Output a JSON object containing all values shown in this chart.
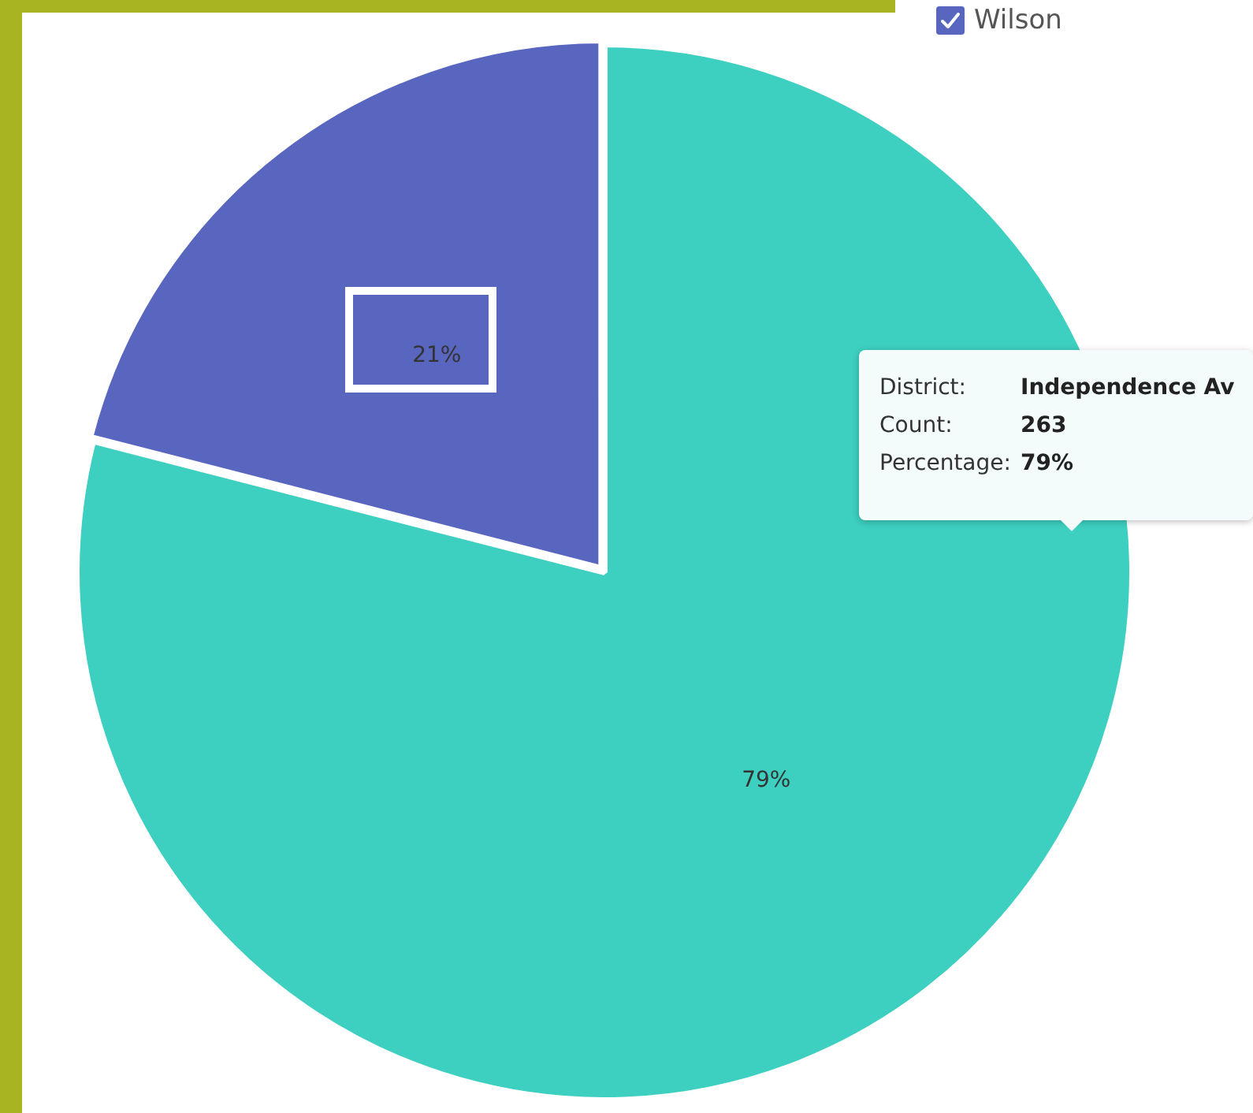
{
  "chart_data": {
    "type": "pie",
    "categories": [
      null,
      "Wilson"
    ],
    "values": [
      79,
      21
    ],
    "colors": [
      "#3dcfbf",
      "#5866c0"
    ],
    "value_labels": [
      "79%",
      "21%"
    ],
    "legend": "top right",
    "annotations": [
      "District:",
      "Independence Av",
      "Count:",
      "263",
      "Percentage:",
      "79%"
    ]
  }
}
